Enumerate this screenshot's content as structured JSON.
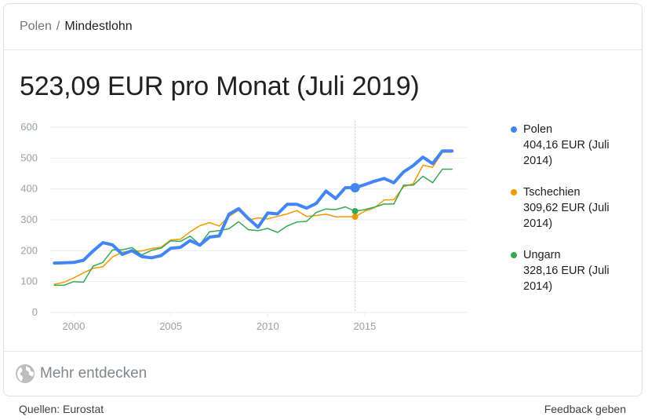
{
  "breadcrumb": {
    "parent": "Polen",
    "separator": "/",
    "current": "Mindestlohn"
  },
  "headline": "523,09 EUR pro Monat (Juli 2019)",
  "legend": [
    {
      "name": "Polen",
      "value": "404,16 EUR (Juli 2014)",
      "color": "#4285f4"
    },
    {
      "name": "Tschechien",
      "value": "309,62 EUR (Juli 2014)",
      "color": "#f29900"
    },
    {
      "name": "Ungarn",
      "value": "328,16 EUR (Juli 2014)",
      "color": "#34a853"
    }
  ],
  "more": {
    "label": "Mehr entdecken",
    "icon": "globe-icon"
  },
  "footer": {
    "sources": "Quellen: Eurostat",
    "feedback": "Feedback geben"
  },
  "chart_data": {
    "type": "line",
    "title": "",
    "xlabel": "",
    "ylabel": "",
    "ylim": [
      0,
      600
    ],
    "yticks": [
      0,
      100,
      200,
      300,
      400,
      500,
      600
    ],
    "xticks": [
      2000,
      2005,
      2010,
      2015
    ],
    "grid": true,
    "legend_position": "right",
    "highlight": {
      "x": 2014.5,
      "label": "Juli 2014"
    },
    "x": [
      1999.0,
      1999.5,
      2000.0,
      2000.5,
      2001.0,
      2001.5,
      2002.0,
      2002.5,
      2003.0,
      2003.5,
      2004.0,
      2004.5,
      2005.0,
      2005.5,
      2006.0,
      2006.5,
      2007.0,
      2007.5,
      2008.0,
      2008.5,
      2009.0,
      2009.5,
      2010.0,
      2010.5,
      2011.0,
      2011.5,
      2012.0,
      2012.5,
      2013.0,
      2013.5,
      2014.0,
      2014.5,
      2015.0,
      2015.5,
      2016.0,
      2016.5,
      2017.0,
      2017.5,
      2018.0,
      2018.5,
      2019.0,
      2019.5
    ],
    "series": [
      {
        "name": "Polen",
        "color": "#4285f4",
        "width": 4,
        "values": [
          160,
          161,
          162,
          169,
          199,
          226,
          219,
          188,
          200,
          181,
          177,
          184,
          208,
          211,
          233,
          218,
          244,
          248,
          318,
          336,
          304,
          276,
          322,
          319,
          350,
          350,
          338,
          353,
          393,
          369,
          404,
          404,
          414,
          425,
          434,
          420,
          455,
          476,
          503,
          482,
          523,
          523
        ]
      },
      {
        "name": "Tschechien",
        "color": "#f29900",
        "width": 1.5,
        "values": [
          91,
          98,
          112,
          128,
          143,
          148,
          180,
          195,
          199,
          199,
          207,
          211,
          235,
          237,
          261,
          281,
          291,
          280,
          311,
          331,
          299,
          306,
          303,
          311,
          319,
          330,
          311,
          314,
          318,
          310,
          310,
          310,
          328,
          339,
          364,
          365,
          407,
          417,
          477,
          470,
          519,
          519
        ]
      },
      {
        "name": "Ungarn",
        "color": "#34a853",
        "width": 1.5,
        "values": [
          88,
          88,
          100,
          98,
          150,
          162,
          203,
          203,
          210,
          186,
          201,
          208,
          232,
          230,
          247,
          220,
          261,
          265,
          271,
          294,
          268,
          265,
          272,
          259,
          280,
          293,
          295,
          324,
          335,
          333,
          342,
          328,
          333,
          341,
          351,
          351,
          412,
          412,
          441,
          420,
          464,
          464
        ]
      }
    ]
  }
}
